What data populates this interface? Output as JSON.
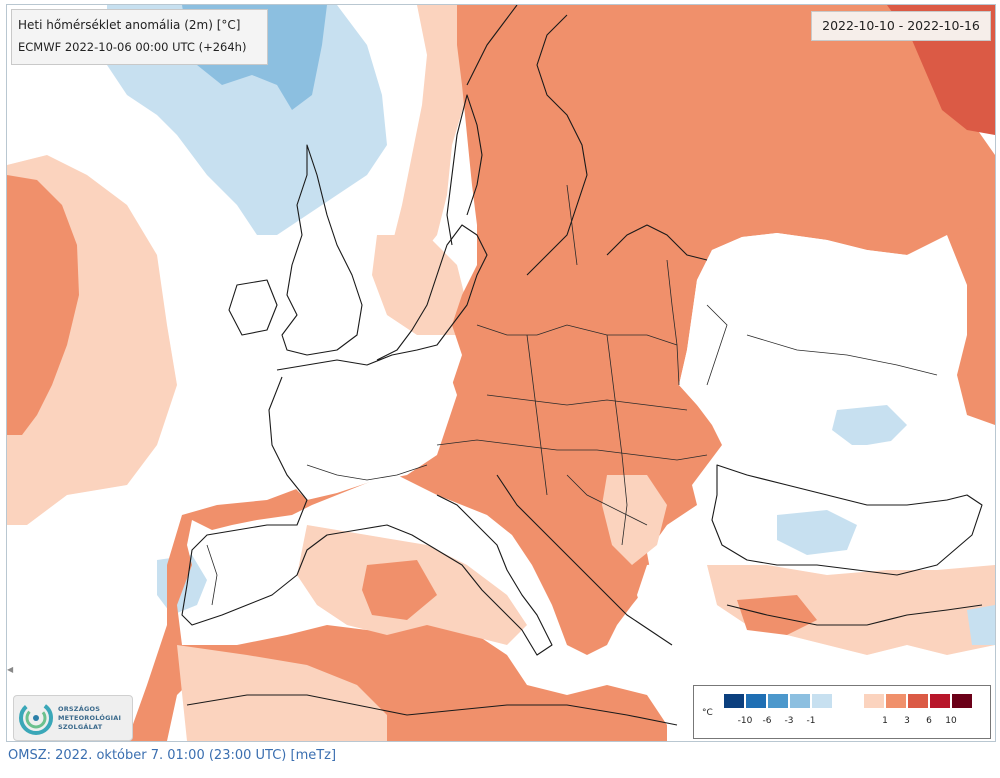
{
  "title": "Heti hőmérséklet anomália (2m) [°C]",
  "model_run": "ECMWF 2022-10-06 00:00 UTC (+264h)",
  "date_range": "2022-10-10 - 2022-10-16",
  "legend": {
    "unit": "°C",
    "cold_colors": [
      "#0b3f7e",
      "#1f6fb4",
      "#4c98cc",
      "#8cbfe0",
      "#c7e0f0"
    ],
    "cold_ticks": [
      "-10",
      "-6",
      "-3",
      "-1"
    ],
    "warm_colors": [
      "#fbd3be",
      "#f0906b",
      "#db5a45",
      "#b8162a",
      "#6b0018"
    ],
    "warm_ticks": [
      "1",
      "3",
      "6",
      "10"
    ]
  },
  "logo": {
    "line1": "ORSZÁGOS",
    "line2": "METEOROLÓGIAI",
    "line3": "SZOLGÁLAT"
  },
  "caption": "OMSZ: 2022. október 7. 01:00 (23:00  UTC)  [meTz]",
  "colors": {
    "land_warm": "#f0906b",
    "light_warm": "#fbd3be",
    "medium_warm": "#db5a45",
    "light_cold": "#c7e0f0",
    "medium_cold": "#8cbfe0",
    "caption_blue": "#3b6fb0"
  }
}
